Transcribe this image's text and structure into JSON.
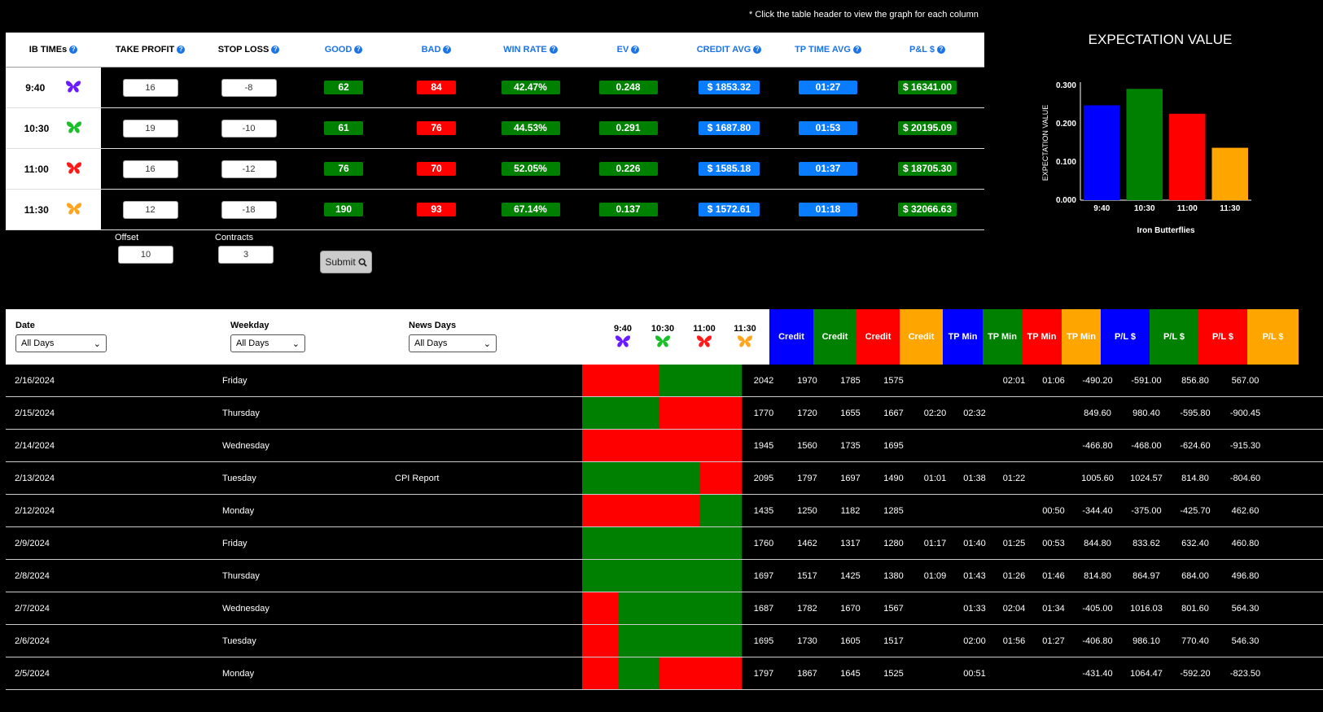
{
  "note": "* Click the table header to view the graph for each column",
  "summary": {
    "headers": [
      "IB TIMEs",
      "TAKE PROFIT",
      "STOP LOSS",
      "GOOD",
      "BAD",
      "WIN RATE",
      "EV",
      "CREDIT AVG",
      "TP TIME AVG",
      "P&L $"
    ],
    "rows": [
      {
        "time": "9:40",
        "tp": "16",
        "sl": "-8",
        "good": "62",
        "bad": "84",
        "winrate": "42.47%",
        "ev": "0.248",
        "credit": "$ 1853.32",
        "tptime": "01:27",
        "pl": "$ 16341.00",
        "color": "#6a1bff",
        "icon": "butterfly-icon"
      },
      {
        "time": "10:30",
        "tp": "19",
        "sl": "-10",
        "good": "61",
        "bad": "76",
        "winrate": "44.53%",
        "ev": "0.291",
        "credit": "$ 1687.80",
        "tptime": "01:53",
        "pl": "$ 20195.09",
        "color": "#1bbf2a",
        "icon": "butterfly-icon"
      },
      {
        "time": "11:00",
        "tp": "16",
        "sl": "-12",
        "good": "76",
        "bad": "70",
        "winrate": "52.05%",
        "ev": "0.226",
        "credit": "$ 1585.18",
        "tptime": "01:37",
        "pl": "$ 18705.30",
        "color": "#ff1a1a",
        "icon": "butterfly-icon"
      },
      {
        "time": "11:30",
        "tp": "12",
        "sl": "-18",
        "good": "190",
        "bad": "93",
        "winrate": "67.14%",
        "ev": "0.137",
        "credit": "$ 1572.61",
        "tptime": "01:18",
        "pl": "$ 32066.63",
        "color": "#ffa51f",
        "icon": "butterfly-icon"
      }
    ]
  },
  "controls": {
    "offset_label": "Offset",
    "offset_value": "10",
    "contracts_label": "Contracts",
    "contracts_value": "3",
    "submit_label": "Submit"
  },
  "chart_data": {
    "type": "bar",
    "title": "EXPECTATION VALUE",
    "ylabel": "EXPECTATION VALUE",
    "xlabel": "Iron Butterflies",
    "categories": [
      "9:40",
      "10:30",
      "11:00",
      "11:30"
    ],
    "values": [
      0.248,
      0.291,
      0.226,
      0.137
    ],
    "colors": [
      "#0000ff",
      "#008000",
      "#ff0000",
      "#ffa500"
    ],
    "yticks": [
      "0.000",
      "0.100",
      "0.200",
      "0.300"
    ],
    "ylim": [
      0,
      0.3
    ]
  },
  "filters": {
    "date_label": "Date",
    "date_value": "All Days",
    "weekday_label": "Weekday",
    "weekday_value": "All Days",
    "news_label": "News Days",
    "news_value": "All Days"
  },
  "ib_times": [
    "9:40",
    "10:30",
    "11:00",
    "11:30"
  ],
  "col_headers": [
    {
      "label": "Credit",
      "bg": "#0000ff",
      "fg": "#ffffff"
    },
    {
      "label": "Credit",
      "bg": "#008000",
      "fg": "#ffffff"
    },
    {
      "label": "Credit",
      "bg": "#ff0000",
      "fg": "#ffffff"
    },
    {
      "label": "Credit",
      "bg": "#ffa500",
      "fg": "#ffffff"
    },
    {
      "label": "TP Min",
      "bg": "#0000ff",
      "fg": "#ffffff"
    },
    {
      "label": "TP Min",
      "bg": "#008000",
      "fg": "#ffffff"
    },
    {
      "label": "TP Min",
      "bg": "#ff0000",
      "fg": "#ffffff"
    },
    {
      "label": "TP Min",
      "bg": "#ffa500",
      "fg": "#ffffff"
    },
    {
      "label": "P/L $",
      "bg": "#0000ff",
      "fg": "#ffffff"
    },
    {
      "label": "P/L $",
      "bg": "#008000",
      "fg": "#ffffff"
    },
    {
      "label": "P/L $",
      "bg": "#ff0000",
      "fg": "#ffffff"
    },
    {
      "label": "P/L $",
      "bg": "#ffa500",
      "fg": "#ffffff"
    }
  ],
  "rows": [
    {
      "date": "2/16/2024",
      "weekday": "Friday",
      "news": "",
      "results": [
        "bad",
        "bad",
        "good",
        "good"
      ],
      "values": [
        "2042",
        "1970",
        "1785",
        "1575",
        "",
        "",
        "02:01",
        "01:06",
        "-490.20",
        "-591.00",
        "856.80",
        "567.00"
      ]
    },
    {
      "date": "2/15/2024",
      "weekday": "Thursday",
      "news": "",
      "results": [
        "good",
        "good",
        "bad",
        "bad"
      ],
      "values": [
        "1770",
        "1720",
        "1655",
        "1667",
        "02:20",
        "02:32",
        "",
        "",
        "849.60",
        "980.40",
        "-595.80",
        "-900.45"
      ]
    },
    {
      "date": "2/14/2024",
      "weekday": "Wednesday",
      "news": "",
      "results": [
        "bad",
        "bad",
        "bad",
        "bad"
      ],
      "values": [
        "1945",
        "1560",
        "1735",
        "1695",
        "",
        "",
        "",
        "",
        "-466.80",
        "-468.00",
        "-624.60",
        "-915.30"
      ]
    },
    {
      "date": "2/13/2024",
      "weekday": "Tuesday",
      "news": "CPI Report",
      "results": [
        "good",
        "good",
        "good",
        "bad"
      ],
      "values": [
        "2095",
        "1797",
        "1697",
        "1490",
        "01:01",
        "01:38",
        "01:22",
        "",
        "1005.60",
        "1024.57",
        "814.80",
        "-804.60"
      ]
    },
    {
      "date": "2/12/2024",
      "weekday": "Monday",
      "news": "",
      "results": [
        "bad",
        "bad",
        "bad",
        "good"
      ],
      "values": [
        "1435",
        "1250",
        "1182",
        "1285",
        "",
        "",
        "",
        "00:50",
        "-344.40",
        "-375.00",
        "-425.70",
        "462.60"
      ]
    },
    {
      "date": "2/9/2024",
      "weekday": "Friday",
      "news": "",
      "results": [
        "good",
        "good",
        "good",
        "good"
      ],
      "values": [
        "1760",
        "1462",
        "1317",
        "1280",
        "01:17",
        "01:40",
        "01:25",
        "00:53",
        "844.80",
        "833.62",
        "632.40",
        "460.80"
      ]
    },
    {
      "date": "2/8/2024",
      "weekday": "Thursday",
      "news": "",
      "results": [
        "good",
        "good",
        "good",
        "good"
      ],
      "values": [
        "1697",
        "1517",
        "1425",
        "1380",
        "01:09",
        "01:43",
        "01:26",
        "01:46",
        "814.80",
        "864.97",
        "684.00",
        "496.80"
      ]
    },
    {
      "date": "2/7/2024",
      "weekday": "Wednesday",
      "news": "",
      "results": [
        "bad",
        "good",
        "good",
        "good"
      ],
      "values": [
        "1687",
        "1782",
        "1670",
        "1567",
        "",
        "01:33",
        "02:04",
        "01:34",
        "-405.00",
        "1016.03",
        "801.60",
        "564.30"
      ]
    },
    {
      "date": "2/6/2024",
      "weekday": "Tuesday",
      "news": "",
      "results": [
        "bad",
        "good",
        "good",
        "good"
      ],
      "values": [
        "1695",
        "1730",
        "1605",
        "1517",
        "",
        "02:00",
        "01:56",
        "01:27",
        "-406.80",
        "986.10",
        "770.40",
        "546.30"
      ]
    },
    {
      "date": "2/5/2024",
      "weekday": "Monday",
      "news": "",
      "results": [
        "bad",
        "good",
        "bad",
        "bad"
      ],
      "values": [
        "1797",
        "1867",
        "1645",
        "1525",
        "",
        "00:51",
        "",
        "",
        "-431.40",
        "1064.47",
        "-592.20",
        "-823.50"
      ]
    }
  ],
  "colors": {
    "good": "#008000",
    "bad": "#ff0000",
    "credit_pill": "#0a7cff",
    "accent_blue": "#1a73e8"
  }
}
